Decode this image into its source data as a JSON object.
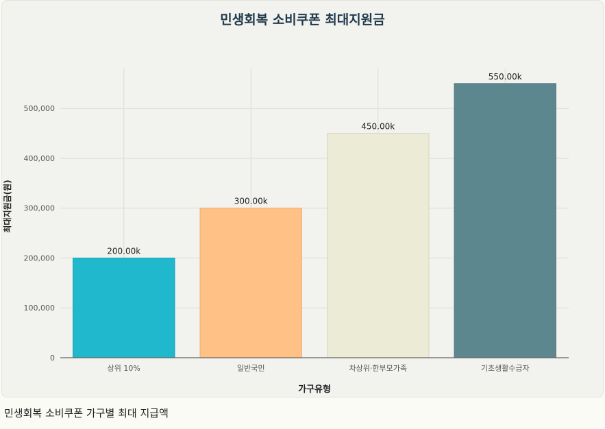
{
  "caption": "민생회복 소비쿠폰 가구별 최대 지급액",
  "colors": {
    "grid": "#dcdcd6",
    "axis": "#666666",
    "tick_text": "#555555",
    "label_text": "#222222"
  },
  "chart_data": {
    "type": "bar",
    "title": "민생회복 소비쿠폰 최대지원금",
    "xlabel": "가구유형",
    "ylabel": "최대지원금(원)",
    "categories": [
      "상위 10%",
      "일반국민",
      "차상위·한부모가족",
      "기초생활수급자"
    ],
    "values": [
      200000,
      300000,
      450000,
      550000
    ],
    "data_labels": [
      "200.00k",
      "300.00k",
      "450.00k",
      "550.00k"
    ],
    "bar_colors": [
      "#20b8cc",
      "#ffc185",
      "#ecebd5",
      "#5d878f"
    ],
    "bar_borders": [
      "#1aa3b5",
      "#f0ae6f",
      "#d8d7bd",
      "#52787f"
    ],
    "yticks": [
      0,
      100000,
      200000,
      300000,
      400000,
      500000
    ],
    "ytick_labels": [
      "0",
      "100,000",
      "200,000",
      "300,000",
      "400,000",
      "500,000"
    ],
    "ylim": [
      0,
      580000
    ],
    "grid": true,
    "legend": "none"
  }
}
